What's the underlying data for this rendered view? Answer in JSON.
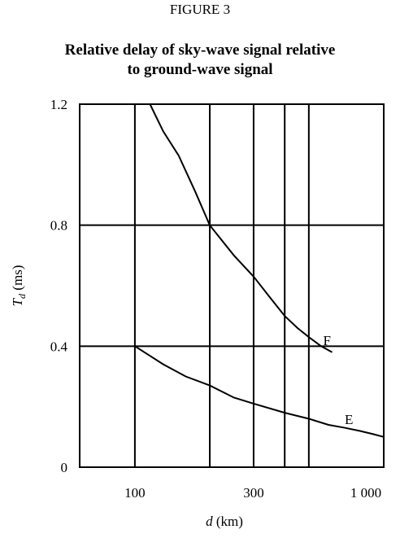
{
  "figure_label": "FIGURE 3",
  "title_lines": [
    "Relative delay of sky-wave signal relative",
    "to ground-wave signal"
  ],
  "chart_data": {
    "type": "line",
    "title": "Relative delay of sky-wave signal relative to ground-wave signal",
    "xlabel": "d (km)",
    "ylabel": "Td (ms)",
    "x_scale": "log",
    "xlim": [
      60,
      1000
    ],
    "ylim": [
      0,
      1.2
    ],
    "x_ticks": [
      {
        "value": 100,
        "label": "100"
      },
      {
        "value": 300,
        "label": "300"
      },
      {
        "value": 1000,
        "label": "1 000"
      }
    ],
    "y_ticks": [
      {
        "value": 0,
        "label": "0"
      },
      {
        "value": 0.4,
        "label": "0.4"
      },
      {
        "value": 0.8,
        "label": "0.8"
      },
      {
        "value": 1.2,
        "label": "1.2"
      }
    ],
    "vertical_gridlines": [
      100,
      200,
      300,
      400,
      500
    ],
    "horizontal_gridlines": [
      0.4,
      0.8
    ],
    "grid": true,
    "series": [
      {
        "name": "F",
        "x": [
          115,
          130,
          150,
          175,
          200,
          250,
          300,
          350,
          400,
          450,
          500,
          560,
          620
        ],
        "y": [
          1.2,
          1.11,
          1.03,
          0.91,
          0.8,
          0.7,
          0.63,
          0.56,
          0.5,
          0.46,
          0.43,
          0.4,
          0.38
        ]
      },
      {
        "name": "E",
        "x": [
          100,
          130,
          160,
          200,
          250,
          300,
          400,
          500,
          600,
          700,
          800,
          900,
          1000
        ],
        "y": [
          0.4,
          0.34,
          0.3,
          0.27,
          0.23,
          0.21,
          0.18,
          0.16,
          0.14,
          0.13,
          0.12,
          0.11,
          0.1
        ]
      }
    ]
  }
}
